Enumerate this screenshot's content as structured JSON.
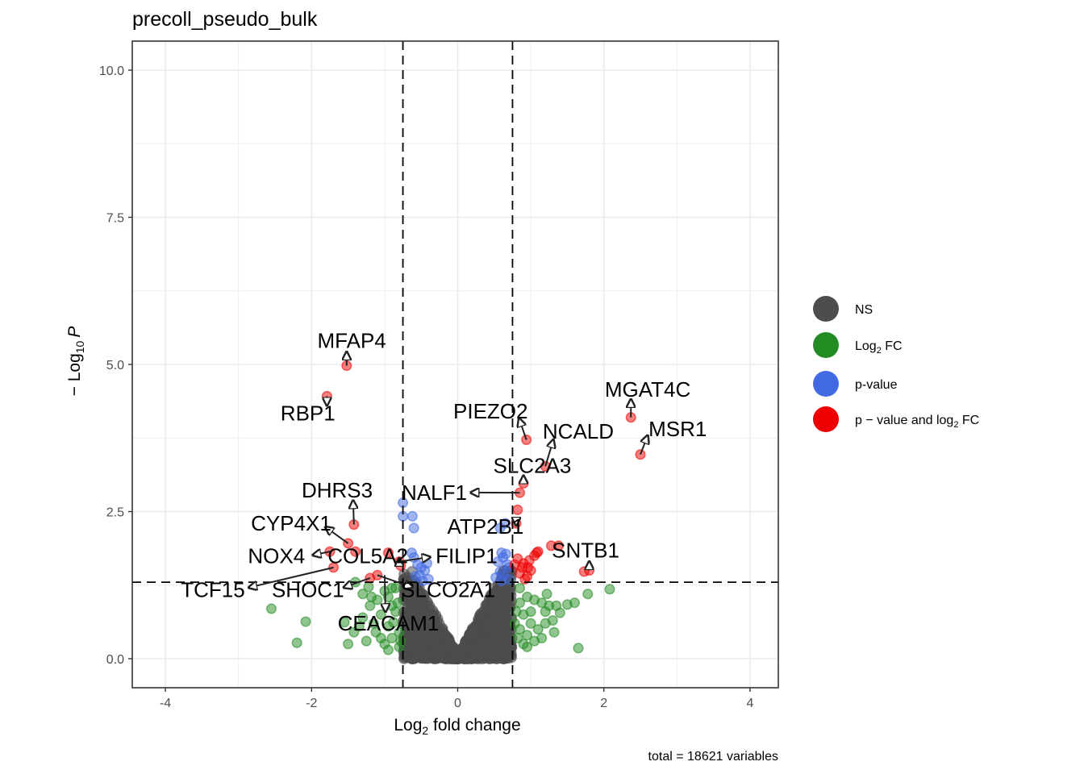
{
  "chart_data": {
    "type": "scatter",
    "title": "precoll_pseudo_bulk",
    "xlabel": "Log2 fold change",
    "xlabel_main": "Log",
    "xlabel_sub": "2",
    "xlabel_rest": " fold change",
    "ylabel_prefix": "− Log",
    "ylabel_sub": "10",
    "ylabel_italic": "P",
    "caption": "total = 18621 variables",
    "xlim": [
      -4.45,
      4.4
    ],
    "ylim": [
      -0.5,
      10.5
    ],
    "xticks": [
      -4,
      -2,
      0,
      2,
      4
    ],
    "xtick_labels": [
      "-4",
      "-2",
      "0",
      "2",
      "4"
    ],
    "yticks": [
      0,
      2.5,
      5,
      7.5,
      10
    ],
    "ytick_labels": [
      "0.0",
      "2.5",
      "5.0",
      "7.5",
      "10.0"
    ],
    "grid": true,
    "cutoffs": {
      "log2fc": 0.75,
      "neg_log10_p": 1.3
    },
    "legend_position": "right",
    "legend": [
      {
        "key": "NS",
        "label": "NS",
        "color": "#4d4d4d"
      },
      {
        "key": "FC",
        "label": "Log",
        "sub": "2",
        "rest": " FC",
        "color": "#228b22"
      },
      {
        "key": "P",
        "label": "p-value",
        "color": "#4169e1"
      },
      {
        "key": "FC_P",
        "label": "p − value and log",
        "sub": "2",
        "rest": " FC",
        "color": "#ee0000"
      }
    ],
    "series": [
      {
        "name": "p − value and log2 FC",
        "key": "FC_P",
        "points": [
          [
            -1.52,
            4.98
          ],
          [
            -1.79,
            4.46
          ],
          [
            -1.42,
            2.28
          ],
          [
            -1.5,
            1.96
          ],
          [
            -1.4,
            1.82
          ],
          [
            -1.75,
            1.82
          ],
          [
            -1.7,
            1.55
          ],
          [
            -1.2,
            1.37
          ],
          [
            -1.1,
            1.42
          ],
          [
            -0.95,
            1.8
          ],
          [
            -0.78,
            1.58
          ],
          [
            -0.8,
            1.65
          ],
          [
            0.94,
            3.72
          ],
          [
            1.2,
            3.27
          ],
          [
            0.9,
            2.98
          ],
          [
            0.85,
            2.82
          ],
          [
            0.82,
            2.53
          ],
          [
            0.8,
            2.3
          ],
          [
            2.37,
            4.1
          ],
          [
            2.5,
            3.47
          ],
          [
            1.73,
            1.48
          ],
          [
            1.8,
            1.5
          ],
          [
            1.28,
            1.92
          ],
          [
            1.38,
            1.92
          ],
          [
            1.08,
            1.8
          ],
          [
            1.05,
            1.75
          ],
          [
            0.98,
            1.67
          ],
          [
            0.9,
            1.62
          ],
          [
            1.0,
            1.5
          ],
          [
            0.95,
            1.4
          ],
          [
            0.92,
            1.35
          ],
          [
            0.88,
            1.55
          ],
          [
            0.85,
            1.45
          ],
          [
            0.82,
            1.7
          ],
          [
            0.78,
            1.6
          ],
          [
            1.1,
            1.82
          ],
          [
            0.96,
            1.55
          ]
        ]
      },
      {
        "name": "p-value",
        "key": "P",
        "points": [
          [
            -0.75,
            2.65
          ],
          [
            -0.75,
            2.42
          ],
          [
            -0.62,
            2.42
          ],
          [
            -0.6,
            2.22
          ],
          [
            -0.63,
            1.8
          ],
          [
            -0.6,
            1.72
          ],
          [
            -0.55,
            1.6
          ],
          [
            -0.5,
            1.55
          ],
          [
            -0.45,
            1.5
          ],
          [
            -0.52,
            1.42
          ],
          [
            -0.4,
            1.35
          ],
          [
            -0.48,
            1.32
          ],
          [
            -0.58,
            1.4
          ],
          [
            -0.42,
            1.62
          ],
          [
            0.58,
            2.22
          ],
          [
            0.65,
            2.3
          ],
          [
            0.6,
            1.8
          ],
          [
            0.62,
            1.72
          ],
          [
            0.55,
            1.65
          ],
          [
            0.68,
            1.6
          ],
          [
            0.7,
            1.55
          ],
          [
            0.58,
            1.48
          ],
          [
            0.63,
            1.42
          ],
          [
            0.52,
            1.38
          ],
          [
            0.7,
            1.35
          ],
          [
            0.66,
            1.78
          ],
          [
            0.6,
            1.32
          ]
        ]
      },
      {
        "name": "Log2 FC",
        "key": "FC",
        "points": [
          [
            -2.55,
            0.85
          ],
          [
            -2.08,
            0.63
          ],
          [
            -2.2,
            0.27
          ],
          [
            -1.5,
            0.25
          ],
          [
            -1.42,
            0.45
          ],
          [
            -1.55,
            0.62
          ],
          [
            -1.3,
            0.7
          ],
          [
            -1.2,
            0.9
          ],
          [
            -1.3,
            1.1
          ],
          [
            -1.1,
            1.0
          ],
          [
            -1.4,
            1.3
          ],
          [
            -1.22,
            1.22
          ],
          [
            -1.0,
            1.15
          ],
          [
            -0.95,
            1.05
          ],
          [
            -0.9,
            0.9
          ],
          [
            -0.85,
            0.8
          ],
          [
            -1.05,
            0.75
          ],
          [
            -1.15,
            0.6
          ],
          [
            -0.95,
            0.55
          ],
          [
            -0.8,
            0.45
          ],
          [
            -0.9,
            0.35
          ],
          [
            -1.0,
            0.25
          ],
          [
            -0.8,
            0.2
          ],
          [
            -0.85,
            1.2
          ],
          [
            -1.12,
            0.45
          ],
          [
            -1.25,
            0.3
          ],
          [
            -1.05,
            0.35
          ],
          [
            -0.88,
            0.62
          ],
          [
            -0.78,
            0.3
          ],
          [
            -1.18,
            1.05
          ],
          [
            -0.82,
            0.95
          ],
          [
            -1.35,
            0.55
          ],
          [
            -0.9,
            1.2
          ],
          [
            -0.95,
            0.15
          ],
          [
            0.85,
            1.2
          ],
          [
            0.95,
            1.05
          ],
          [
            1.05,
            1.0
          ],
          [
            1.15,
            0.95
          ],
          [
            1.25,
            0.9
          ],
          [
            1.35,
            0.9
          ],
          [
            1.5,
            0.92
          ],
          [
            1.6,
            0.95
          ],
          [
            1.78,
            1.1
          ],
          [
            2.08,
            1.18
          ],
          [
            1.65,
            0.18
          ],
          [
            0.9,
            0.75
          ],
          [
            1.0,
            0.6
          ],
          [
            1.1,
            0.5
          ],
          [
            1.2,
            0.6
          ],
          [
            0.85,
            0.5
          ],
          [
            0.95,
            0.4
          ],
          [
            1.05,
            0.3
          ],
          [
            0.9,
            0.25
          ],
          [
            0.8,
            0.8
          ],
          [
            1.0,
            0.8
          ],
          [
            1.2,
            0.8
          ],
          [
            0.85,
            0.95
          ],
          [
            0.95,
            0.2
          ],
          [
            1.3,
            0.65
          ],
          [
            1.4,
            0.78
          ],
          [
            1.15,
            0.35
          ],
          [
            0.82,
            0.35
          ],
          [
            0.78,
            0.6
          ],
          [
            1.22,
            1.1
          ],
          [
            1.32,
            0.45
          ]
        ]
      }
    ],
    "ns_envelope": {
      "description": "dense cloud of non-significant points within |log2FC| < 0.75, V-shaped, reaching ~1.5 at edges and ~0 at center",
      "color": "#4d4d4d"
    },
    "labels": [
      {
        "gene": "MFAP4",
        "point": [
          -1.52,
          4.98
        ],
        "text_at": [
          -1.45,
          5.28
        ]
      },
      {
        "gene": "RBP1",
        "point": [
          -1.79,
          4.46
        ],
        "text_at": [
          -2.05,
          4.05
        ]
      },
      {
        "gene": "DHRS3",
        "point": [
          -1.42,
          2.28
        ],
        "text_at": [
          -1.65,
          2.74
        ]
      },
      {
        "gene": "CYP4X1",
        "point": [
          -1.5,
          1.96
        ],
        "text_at": [
          -2.28,
          2.18
        ]
      },
      {
        "gene": "NOX4",
        "point": [
          -1.75,
          1.82
        ],
        "text_at": [
          -2.48,
          1.62
        ]
      },
      {
        "gene": "COL5A2",
        "point": [
          -0.8,
          1.65
        ],
        "text_at": [
          -1.23,
          1.62
        ]
      },
      {
        "gene": "FILIP1",
        "point": [
          -0.8,
          1.65
        ],
        "text_at": [
          0.12,
          1.62
        ]
      },
      {
        "gene": "TCF15",
        "point": [
          -1.7,
          1.55
        ],
        "text_at": [
          -3.35,
          1.05
        ]
      },
      {
        "gene": "SHOC1",
        "point": [
          -1.2,
          1.37
        ],
        "text_at": [
          -2.05,
          1.05
        ]
      },
      {
        "gene": "SLCO2A1",
        "point": [
          -1.1,
          1.42
        ],
        "text_at": [
          -0.13,
          1.05
        ]
      },
      {
        "gene": "CEACAM1",
        "point": [
          -1.0,
          1.42
        ],
        "text_at": [
          -0.95,
          0.48
        ]
      },
      {
        "gene": "PIEZO2",
        "point": [
          0.94,
          3.72
        ],
        "text_at": [
          0.45,
          4.08
        ]
      },
      {
        "gene": "NCALD",
        "point": [
          1.2,
          3.27
        ],
        "text_at": [
          1.65,
          3.74
        ]
      },
      {
        "gene": "SLC2A3",
        "point": [
          0.9,
          2.98
        ],
        "text_at": [
          1.02,
          3.16
        ]
      },
      {
        "gene": "NALF1",
        "point": [
          0.85,
          2.82
        ],
        "text_at": [
          -0.32,
          2.7
        ]
      },
      {
        "gene": "ATP2B1",
        "point": [
          0.8,
          2.3
        ],
        "text_at": [
          0.38,
          2.12
        ]
      },
      {
        "gene": "MGAT4C",
        "point": [
          2.37,
          4.1
        ],
        "text_at": [
          2.6,
          4.45
        ]
      },
      {
        "gene": "MSR1",
        "point": [
          2.5,
          3.47
        ],
        "text_at": [
          3.01,
          3.78
        ]
      },
      {
        "gene": "SNTB1",
        "point": [
          1.8,
          1.5
        ],
        "text_at": [
          1.75,
          1.72
        ]
      }
    ]
  }
}
